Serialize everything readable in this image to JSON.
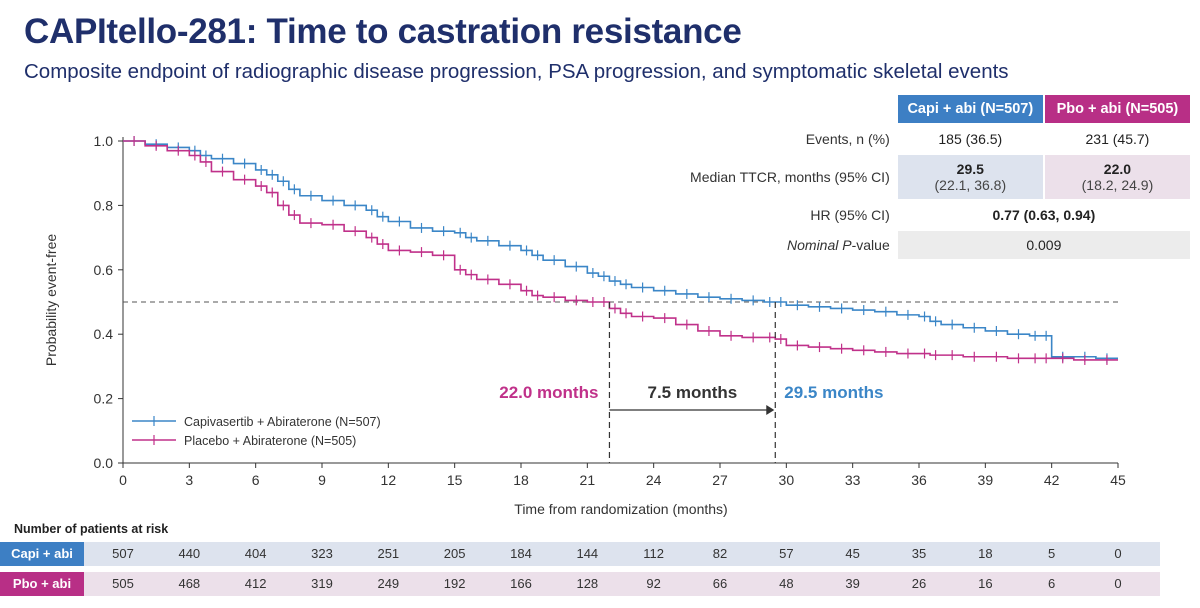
{
  "title": "CAPItello-281: Time to castration resistance",
  "subtitle": "Composite endpoint of radiographic disease progression, PSA progression, and symptomatic skeletal events",
  "colors": {
    "capi": "#3b86c7",
    "pbo": "#c0318a",
    "navy": "#1f2f6b",
    "capi_header": "#3d7fc4",
    "pbo_header": "#b82f86"
  },
  "stats_table": {
    "headers": {
      "capi": "Capi + abi (N=507)",
      "pbo": "Pbo + abi (N=505)"
    },
    "rows": [
      {
        "label": "Events, n (%)",
        "capi": "185 (36.5)",
        "pbo": "231 (45.7)"
      },
      {
        "label": "Median TTCR, months (95% CI)",
        "capi_main": "29.5",
        "capi_sub": "(22.1, 36.8)",
        "pbo_main": "22.0",
        "pbo_sub": "(18.2, 24.9)"
      },
      {
        "label": "HR (95% CI)",
        "value": "0.77 (0.63, 0.94)"
      },
      {
        "label_italic": "Nominal ",
        "label_p": "P",
        "label_rest": "-value",
        "value": "0.009"
      }
    ]
  },
  "chart_data": {
    "type": "line",
    "xlabel": "Time from randomization (months)",
    "ylabel": "Probability event-free",
    "xlim": [
      0,
      45
    ],
    "ylim": [
      0,
      1.0
    ],
    "xticks": [
      "0",
      "3",
      "6",
      "9",
      "12",
      "15",
      "18",
      "21",
      "24",
      "27",
      "30",
      "33",
      "36",
      "39",
      "42",
      "45"
    ],
    "yticks": [
      "0.0",
      "0.2",
      "0.4",
      "0.6",
      "0.8",
      "1.0"
    ],
    "reference_line_y": 0.5,
    "legend_position": "bottom-left",
    "series": [
      {
        "name": "Capivasertib + Abiraterone (N=507)",
        "color": "#3b86c7",
        "x": [
          0,
          1,
          2,
          3,
          3.5,
          4,
          5,
          6,
          6.5,
          7,
          7.5,
          8,
          9,
          10,
          11,
          11.5,
          12,
          13,
          14,
          15,
          15.5,
          16,
          17,
          18,
          18.5,
          19,
          20,
          21,
          21.5,
          22,
          22.5,
          23,
          24,
          25,
          26,
          27,
          28,
          29,
          29.5,
          30,
          31,
          32,
          33,
          34,
          35,
          36,
          36.5,
          37,
          38,
          39,
          40,
          41,
          41.5,
          42,
          43,
          44,
          45
        ],
        "y": [
          1.0,
          0.99,
          0.98,
          0.97,
          0.955,
          0.945,
          0.93,
          0.91,
          0.895,
          0.875,
          0.85,
          0.83,
          0.815,
          0.8,
          0.785,
          0.765,
          0.75,
          0.73,
          0.72,
          0.715,
          0.7,
          0.69,
          0.675,
          0.66,
          0.645,
          0.63,
          0.61,
          0.59,
          0.58,
          0.565,
          0.555,
          0.545,
          0.535,
          0.525,
          0.515,
          0.51,
          0.505,
          0.5,
          0.5,
          0.49,
          0.485,
          0.48,
          0.475,
          0.47,
          0.46,
          0.455,
          0.44,
          0.43,
          0.42,
          0.41,
          0.4,
          0.395,
          0.395,
          0.33,
          0.33,
          0.325,
          0.325
        ]
      },
      {
        "name": "Placebo + Abiraterone (N=505)",
        "color": "#c0318a",
        "x": [
          0,
          1,
          2,
          3,
          3.5,
          4,
          5,
          6,
          6.5,
          7,
          7.5,
          8,
          9,
          10,
          11,
          11.5,
          12,
          13,
          14,
          15,
          15.5,
          16,
          17,
          18,
          18.5,
          19,
          20,
          21,
          21.5,
          22,
          22.5,
          23,
          24,
          25,
          26,
          27,
          28,
          29,
          29.5,
          30,
          31,
          32,
          33,
          34,
          35,
          36,
          36.5,
          37,
          38,
          39,
          40,
          41,
          41.5,
          42,
          43,
          44,
          45
        ],
        "y": [
          1.0,
          0.985,
          0.97,
          0.955,
          0.935,
          0.905,
          0.88,
          0.86,
          0.84,
          0.8,
          0.77,
          0.745,
          0.74,
          0.72,
          0.7,
          0.68,
          0.66,
          0.655,
          0.645,
          0.6,
          0.585,
          0.57,
          0.555,
          0.535,
          0.52,
          0.515,
          0.505,
          0.5,
          0.5,
          0.48,
          0.465,
          0.455,
          0.45,
          0.43,
          0.41,
          0.395,
          0.39,
          0.39,
          0.385,
          0.365,
          0.36,
          0.355,
          0.35,
          0.345,
          0.34,
          0.34,
          0.335,
          0.335,
          0.33,
          0.33,
          0.325,
          0.325,
          0.325,
          0.325,
          0.32,
          0.32,
          0.32
        ]
      }
    ],
    "annotations": {
      "pbo_median_label": "22.0 months",
      "pbo_median_x": 22.0,
      "capi_median_label": "29.5 months",
      "capi_median_x": 29.5,
      "difference_label": "7.5 months"
    }
  },
  "risk_table": {
    "title": "Number of patients at risk",
    "rows": [
      {
        "label": "Capi + abi",
        "values": [
          "507",
          "440",
          "404",
          "323",
          "251",
          "205",
          "184",
          "144",
          "112",
          "82",
          "57",
          "45",
          "35",
          "18",
          "5",
          "0"
        ]
      },
      {
        "label": "Pbo + abi",
        "values": [
          "505",
          "468",
          "412",
          "319",
          "249",
          "192",
          "166",
          "128",
          "92",
          "66",
          "48",
          "39",
          "26",
          "16",
          "6",
          "0"
        ]
      }
    ]
  }
}
